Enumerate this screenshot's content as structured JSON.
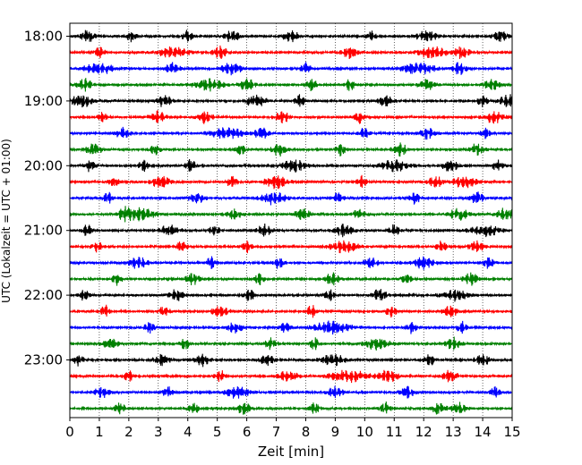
{
  "chart_data": {
    "type": "line",
    "xlabel": "Zeit  [min]",
    "ylabel": "UTC (Lokalzeit = UTC + 01:00)",
    "xlim": [
      0,
      15
    ],
    "x_ticks": [
      "0",
      "1",
      "2",
      "3",
      "4",
      "5",
      "6",
      "7",
      "8",
      "9",
      "10",
      "11",
      "12",
      "13",
      "14",
      "15"
    ],
    "y_ticks": [
      "18:00",
      "19:00",
      "20:00",
      "21:00",
      "22:00",
      "23:00"
    ],
    "grid": "vertical dotted",
    "start_hour": 18,
    "traces_per_hour": 4,
    "trace_count": 24,
    "trace_colors": [
      "#000000",
      "#ff0000",
      "#0000ff",
      "#008000"
    ],
    "bursts": [
      [
        [
          0.6,
          0.3
        ],
        [
          2.1,
          0.2
        ],
        [
          4.0,
          0.2
        ],
        [
          5.5,
          0.3
        ],
        [
          7.5,
          0.3
        ],
        [
          10.2,
          0.2
        ],
        [
          12.1,
          0.4
        ],
        [
          14.6,
          0.3
        ]
      ],
      [
        [
          1.0,
          0.2
        ],
        [
          3.5,
          0.6
        ],
        [
          5.1,
          0.3
        ],
        [
          9.5,
          0.3
        ],
        [
          12.3,
          0.6
        ],
        [
          13.3,
          0.3
        ]
      ],
      [
        [
          1.0,
          0.6
        ],
        [
          3.5,
          0.3
        ],
        [
          5.5,
          0.4
        ],
        [
          8.0,
          0.2
        ],
        [
          11.8,
          0.7
        ],
        [
          13.2,
          0.3
        ]
      ],
      [
        [
          0.5,
          0.3
        ],
        [
          4.7,
          0.6
        ],
        [
          6.0,
          0.3
        ],
        [
          8.2,
          0.2
        ],
        [
          9.5,
          0.2
        ],
        [
          12.1,
          0.3
        ],
        [
          14.3,
          0.3
        ]
      ],
      [
        [
          0.4,
          0.5
        ],
        [
          3.2,
          0.3
        ],
        [
          6.3,
          0.4
        ],
        [
          7.8,
          0.2
        ],
        [
          10.7,
          0.3
        ],
        [
          14.0,
          0.2
        ],
        [
          14.9,
          0.4
        ]
      ],
      [
        [
          1.1,
          0.2
        ],
        [
          3.0,
          0.3
        ],
        [
          4.6,
          0.3
        ],
        [
          7.2,
          0.3
        ],
        [
          9.8,
          0.2
        ],
        [
          14.4,
          0.4
        ]
      ],
      [
        [
          1.8,
          0.3
        ],
        [
          5.3,
          0.7
        ],
        [
          6.5,
          0.3
        ],
        [
          10.0,
          0.2
        ],
        [
          12.1,
          0.3
        ],
        [
          14.1,
          0.2
        ]
      ],
      [
        [
          0.8,
          0.3
        ],
        [
          2.9,
          0.2
        ],
        [
          5.8,
          0.2
        ],
        [
          7.1,
          0.3
        ],
        [
          9.2,
          0.2
        ],
        [
          11.2,
          0.3
        ],
        [
          13.8,
          0.3
        ]
      ],
      [
        [
          0.7,
          0.2
        ],
        [
          2.5,
          0.2
        ],
        [
          4.1,
          0.2
        ],
        [
          7.6,
          0.5
        ],
        [
          11.0,
          0.6
        ],
        [
          12.9,
          0.3
        ],
        [
          14.5,
          0.2
        ]
      ],
      [
        [
          1.5,
          0.2
        ],
        [
          3.1,
          0.4
        ],
        [
          5.5,
          0.2
        ],
        [
          7.0,
          0.5
        ],
        [
          9.9,
          0.2
        ],
        [
          12.4,
          0.3
        ],
        [
          13.4,
          0.5
        ]
      ],
      [
        [
          1.3,
          0.2
        ],
        [
          4.3,
          0.3
        ],
        [
          6.9,
          0.5
        ],
        [
          9.1,
          0.2
        ],
        [
          11.7,
          0.2
        ],
        [
          13.8,
          0.3
        ]
      ],
      [
        [
          1.9,
          0.3
        ],
        [
          2.4,
          0.6
        ],
        [
          5.6,
          0.3
        ],
        [
          7.9,
          0.3
        ],
        [
          9.8,
          0.2
        ],
        [
          13.2,
          0.4
        ],
        [
          14.8,
          0.4
        ]
      ],
      [
        [
          0.6,
          0.2
        ],
        [
          3.4,
          0.4
        ],
        [
          4.9,
          0.2
        ],
        [
          6.6,
          0.3
        ],
        [
          9.3,
          0.4
        ],
        [
          11.0,
          0.2
        ],
        [
          14.1,
          0.6
        ]
      ],
      [
        [
          0.9,
          0.2
        ],
        [
          3.8,
          0.2
        ],
        [
          6.0,
          0.2
        ],
        [
          9.3,
          0.6
        ],
        [
          12.6,
          0.2
        ],
        [
          13.8,
          0.3
        ]
      ],
      [
        [
          2.3,
          0.4
        ],
        [
          4.8,
          0.2
        ],
        [
          7.1,
          0.2
        ],
        [
          10.2,
          0.3
        ],
        [
          12.0,
          0.4
        ],
        [
          14.2,
          0.2
        ]
      ],
      [
        [
          1.6,
          0.2
        ],
        [
          4.2,
          0.3
        ],
        [
          6.4,
          0.2
        ],
        [
          8.9,
          0.3
        ],
        [
          11.4,
          0.2
        ],
        [
          13.6,
          0.3
        ]
      ],
      [
        [
          0.5,
          0.2
        ],
        [
          3.6,
          0.3
        ],
        [
          6.1,
          0.2
        ],
        [
          8.8,
          0.2
        ],
        [
          10.5,
          0.3
        ],
        [
          13.1,
          0.5
        ]
      ],
      [
        [
          1.2,
          0.2
        ],
        [
          3.2,
          0.2
        ],
        [
          5.1,
          0.3
        ],
        [
          8.2,
          0.2
        ],
        [
          10.9,
          0.2
        ],
        [
          12.9,
          0.3
        ]
      ],
      [
        [
          2.7,
          0.2
        ],
        [
          5.6,
          0.3
        ],
        [
          7.3,
          0.2
        ],
        [
          8.9,
          0.8
        ],
        [
          11.6,
          0.2
        ],
        [
          13.3,
          0.2
        ]
      ],
      [
        [
          1.4,
          0.3
        ],
        [
          3.9,
          0.2
        ],
        [
          6.8,
          0.2
        ],
        [
          8.3,
          0.2
        ],
        [
          10.4,
          0.5
        ],
        [
          13.0,
          0.3
        ]
      ],
      [
        [
          0.3,
          0.2
        ],
        [
          3.1,
          0.3
        ],
        [
          4.5,
          0.3
        ],
        [
          6.7,
          0.3
        ],
        [
          8.9,
          0.5
        ],
        [
          12.2,
          0.2
        ],
        [
          14.0,
          0.3
        ]
      ],
      [
        [
          2.0,
          0.2
        ],
        [
          5.1,
          0.2
        ],
        [
          7.4,
          0.4
        ],
        [
          9.5,
          0.8
        ],
        [
          10.8,
          0.4
        ],
        [
          12.9,
          0.3
        ]
      ],
      [
        [
          1.1,
          0.3
        ],
        [
          3.3,
          0.2
        ],
        [
          5.7,
          0.5
        ],
        [
          9.0,
          0.3
        ],
        [
          11.4,
          0.3
        ],
        [
          14.4,
          0.2
        ]
      ],
      [
        [
          1.7,
          0.2
        ],
        [
          4.2,
          0.2
        ],
        [
          5.9,
          0.3
        ],
        [
          8.3,
          0.2
        ],
        [
          10.7,
          0.2
        ],
        [
          12.5,
          0.3
        ],
        [
          13.2,
          0.3
        ]
      ]
    ]
  }
}
